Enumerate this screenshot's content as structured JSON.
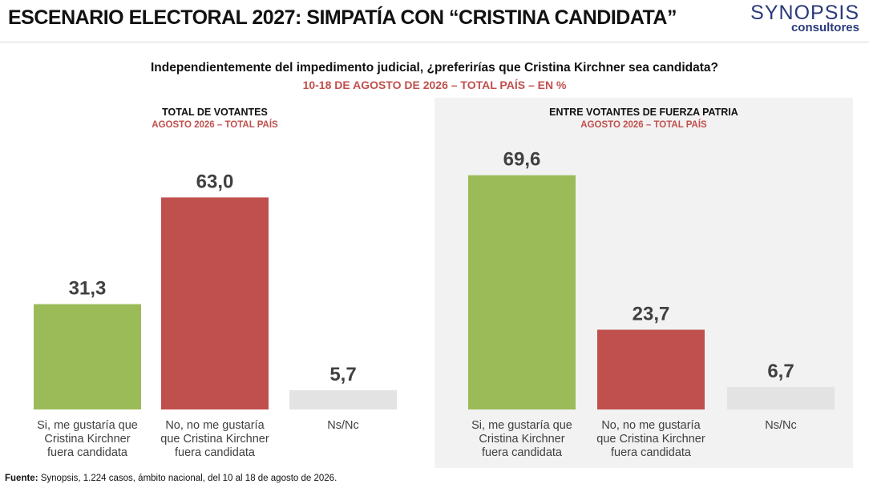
{
  "header": {
    "title": "ESCENARIO ELECTORAL 2027: SIMPATÍA CON “CRISTINA CANDIDATA”",
    "logo_main": "SYNOPSIS",
    "logo_sub": "consultores"
  },
  "question": "Independientemente del impedimento judicial, ¿preferirías que Cristina Kirchner sea candidata?",
  "question_sub": "10-18 DE AGOSTO DE 2026 – TOTAL PAÍS – EN %",
  "panels": [
    {
      "title": "TOTAL DE VOTANTES",
      "subtitle": "AGOSTO 2026 – TOTAL PAÍS"
    },
    {
      "title": "ENTRE VOTANTES DE FUERZA PATRIA",
      "subtitle": "AGOSTO 2026 – TOTAL PAÍS"
    }
  ],
  "colors": {
    "green": "#9bbb59",
    "red": "#c0504d",
    "gray": "#e3e3e3",
    "accent": "#c0504d",
    "logo": "#2a3a7a"
  },
  "chart_data": [
    {
      "type": "bar",
      "title": "TOTAL DE VOTANTES",
      "categories": [
        [
          "Si, me gustaría que",
          "Cristina Kirchner",
          "fuera candidata"
        ],
        [
          "No, no me gustaría",
          "que Cristina Kirchner",
          "fuera candidata"
        ],
        [
          "Ns/Nc"
        ]
      ],
      "values": [
        31.3,
        63.0,
        5.7
      ],
      "value_labels": [
        "31,3",
        "63,0",
        "5,7"
      ],
      "colors": [
        "#9bbb59",
        "#c0504d",
        "#e3e3e3"
      ],
      "ylim": [
        0,
        75
      ]
    },
    {
      "type": "bar",
      "title": "ENTRE VOTANTES DE FUERZA PATRIA",
      "categories": [
        [
          "Si, me gustaría que",
          "Cristina Kirchner",
          "fuera candidata"
        ],
        [
          "No, no me gustaría",
          "que Cristina Kirchner",
          "fuera candidata"
        ],
        [
          "Ns/Nc"
        ]
      ],
      "values": [
        69.6,
        23.7,
        6.7
      ],
      "value_labels": [
        "69,6",
        "23,7",
        "6,7"
      ],
      "colors": [
        "#9bbb59",
        "#c0504d",
        "#e3e3e3"
      ],
      "ylim": [
        0,
        75
      ]
    }
  ],
  "footer": {
    "label": "Fuente:",
    "text": " Synopsis, 1.224 casos, ámbito nacional, del 10 al 18 de agosto de 2026."
  }
}
